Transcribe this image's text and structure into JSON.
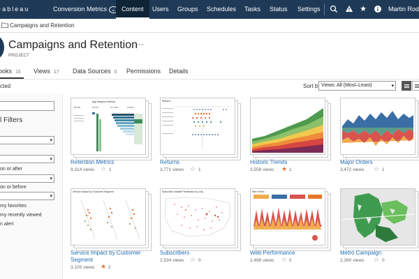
{
  "topnav": {
    "logo": "+ableau",
    "site": "Conversion Metrics",
    "tabs": [
      "Content",
      "Users",
      "Groups",
      "Schedules",
      "Tasks",
      "Status",
      "Settings"
    ],
    "active_tab": "Content",
    "user": "Martin Rodri",
    "bg_color": "#1f3a57"
  },
  "breadcrumb": {
    "label": "Campaigns and Retention"
  },
  "project": {
    "title": "Campaigns and Retention",
    "subtitle": "PROJECT",
    "more": "···"
  },
  "tabs": [
    {
      "label": "ooks",
      "count": "16"
    },
    {
      "label": "Views",
      "count": "17"
    },
    {
      "label": "Data Sources",
      "count": "0"
    },
    {
      "label": "Permissions",
      "count": ""
    },
    {
      "label": "Details",
      "count": ""
    }
  ],
  "selection": {
    "label": "cted"
  },
  "sort": {
    "label": "Sort by",
    "value": "Views: All (Most–Least)"
  },
  "sidebar": {
    "filters_title": "l Filters",
    "labels": [
      "on or after",
      "on or before"
    ],
    "checks": [
      "my favorites",
      "my recently viewed",
      "n alert"
    ]
  },
  "workbooks": [
    {
      "name": "Retention Metrics",
      "views": "9,314 views",
      "favorites": "1",
      "favorited": false
    },
    {
      "name": "Returns",
      "views": "3,771 views",
      "favorites": "1",
      "favorited": false
    },
    {
      "name": "Historic Trends",
      "views": "3,558 views",
      "favorites": "1",
      "favorited": true
    },
    {
      "name": "Major Orders",
      "views": "3,472 views",
      "favorites": "1",
      "favorited": false
    },
    {
      "name": "Service Impact by Customer Segment",
      "views": "3,105 views",
      "favorites": "2",
      "favorited": true
    },
    {
      "name": "Subscribers",
      "views": "2,534 views",
      "favorites": "0",
      "favorited": false
    },
    {
      "name": "Web Performance",
      "views": "2,498 views",
      "favorites": "0",
      "favorited": false
    },
    {
      "name": "Metro Campaign",
      "views": "2,260 views",
      "favorites": "0",
      "favorited": false
    }
  ],
  "colors": {
    "link": "#1f6cb0",
    "favorite": "#e8762b",
    "nav": "#1f3a57"
  }
}
